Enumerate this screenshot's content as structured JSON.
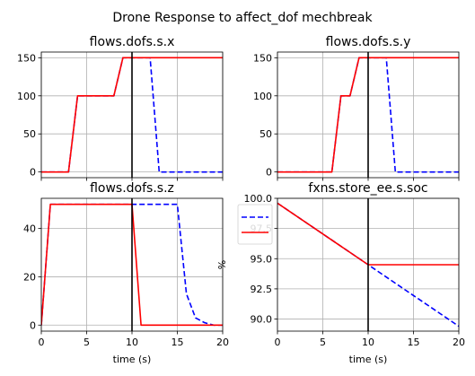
{
  "figure": {
    "suptitle": "Drone Response to affect_dof mechbreak"
  },
  "colors": {
    "nominal": "#0000ff",
    "faulty": "#ff0000",
    "event_line": "#000000",
    "grid": "#b0b0b0"
  },
  "chart_data": [
    {
      "type": "line",
      "title": "flows.dofs.s.x",
      "xlabel": "",
      "ylabel": "",
      "xlim": [
        0,
        20
      ],
      "ylim": [
        -7.5,
        157.5
      ],
      "xticks": [
        0,
        5,
        10,
        15,
        20
      ],
      "xtick_labels": [
        "",
        "",
        "",
        "",
        ""
      ],
      "yticks": [
        0,
        50,
        100,
        150
      ],
      "ytick_labels": [
        "0",
        "50",
        "100",
        "150"
      ],
      "grid": true,
      "event_time": 10,
      "series": [
        {
          "style": "dashed",
          "color": "#0000ff",
          "x": [
            0,
            1,
            2,
            3,
            4,
            5,
            6,
            7,
            8,
            9,
            10,
            11,
            12,
            13,
            14,
            15,
            16,
            17,
            18,
            19,
            20
          ],
          "y": [
            0,
            0,
            0,
            0,
            100,
            100,
            100,
            100,
            100,
            150,
            150,
            150,
            150,
            0,
            0,
            0,
            0,
            0,
            0,
            0,
            0
          ]
        },
        {
          "style": "solid",
          "color": "#ff0000",
          "x": [
            0,
            1,
            2,
            3,
            4,
            5,
            6,
            7,
            8,
            9,
            10,
            11,
            12,
            13,
            14,
            15,
            16,
            17,
            18,
            19,
            20
          ],
          "y": [
            0,
            0,
            0,
            0,
            100,
            100,
            100,
            100,
            100,
            150,
            150,
            150,
            150,
            150,
            150,
            150,
            150,
            150,
            150,
            150,
            150
          ]
        }
      ]
    },
    {
      "type": "line",
      "title": "flows.dofs.s.y",
      "xlabel": "",
      "ylabel": "",
      "xlim": [
        0,
        20
      ],
      "ylim": [
        -7.5,
        157.5
      ],
      "xticks": [
        0,
        5,
        10,
        15,
        20
      ],
      "xtick_labels": [
        "",
        "",
        "",
        "",
        ""
      ],
      "yticks": [
        0,
        50,
        100,
        150
      ],
      "ytick_labels": [
        "0",
        "50",
        "100",
        "150"
      ],
      "grid": true,
      "event_time": 10,
      "series": [
        {
          "style": "dashed",
          "color": "#0000ff",
          "x": [
            0,
            1,
            2,
            3,
            4,
            5,
            6,
            7,
            8,
            9,
            10,
            11,
            12,
            13,
            14,
            15,
            16,
            17,
            18,
            19,
            20
          ],
          "y": [
            0,
            0,
            0,
            0,
            0,
            0,
            0,
            100,
            100,
            150,
            150,
            150,
            150,
            0,
            0,
            0,
            0,
            0,
            0,
            0,
            0
          ]
        },
        {
          "style": "solid",
          "color": "#ff0000",
          "x": [
            0,
            1,
            2,
            3,
            4,
            5,
            6,
            7,
            8,
            9,
            10,
            11,
            12,
            13,
            14,
            15,
            16,
            17,
            18,
            19,
            20
          ],
          "y": [
            0,
            0,
            0,
            0,
            0,
            0,
            0,
            100,
            100,
            150,
            150,
            150,
            150,
            150,
            150,
            150,
            150,
            150,
            150,
            150,
            150
          ]
        }
      ]
    },
    {
      "type": "line",
      "title": "flows.dofs.s.z",
      "xlabel": "time (s)",
      "ylabel": "",
      "xlim": [
        0,
        20
      ],
      "ylim": [
        -2.5,
        52.5
      ],
      "xticks": [
        0,
        5,
        10,
        15,
        20
      ],
      "xtick_labels": [
        "0",
        "5",
        "10",
        "15",
        "20"
      ],
      "yticks": [
        0,
        20,
        40
      ],
      "ytick_labels": [
        "0",
        "20",
        "40"
      ],
      "grid": true,
      "event_time": 10,
      "series": [
        {
          "style": "dashed",
          "color": "#0000ff",
          "x": [
            0,
            1,
            2,
            3,
            4,
            5,
            6,
            7,
            8,
            9,
            10,
            11,
            12,
            13,
            14,
            15,
            16,
            17,
            18,
            19,
            20
          ],
          "y": [
            0,
            50,
            50,
            50,
            50,
            50,
            50,
            50,
            50,
            50,
            50,
            50,
            50,
            50,
            50,
            50,
            13,
            3,
            1,
            0,
            0
          ]
        },
        {
          "style": "solid",
          "color": "#ff0000",
          "x": [
            0,
            1,
            2,
            3,
            4,
            5,
            6,
            7,
            8,
            9,
            10,
            11,
            12,
            13,
            14,
            15,
            16,
            17,
            18,
            19,
            20
          ],
          "y": [
            0,
            50,
            50,
            50,
            50,
            50,
            50,
            50,
            50,
            50,
            50,
            0,
            0,
            0,
            0,
            0,
            0,
            0,
            0,
            0,
            0
          ]
        }
      ]
    },
    {
      "type": "line",
      "title": "fxns.store_ee.s.soc",
      "xlabel": "time (s)",
      "ylabel": "%",
      "xlim": [
        0,
        20
      ],
      "ylim": [
        89.0,
        100.0
      ],
      "xticks": [
        0,
        5,
        10,
        15,
        20
      ],
      "xtick_labels": [
        "0",
        "5",
        "10",
        "15",
        "20"
      ],
      "yticks": [
        90.0,
        92.5,
        95.0,
        97.5,
        100.0
      ],
      "ytick_labels": [
        "90.0",
        "92.5",
        "95.0",
        "97.5",
        "100.0"
      ],
      "grid": true,
      "event_time": 10,
      "legend": {
        "placement": "upper-left",
        "entries": [
          "",
          ""
        ]
      },
      "series": [
        {
          "style": "dashed",
          "color": "#0000ff",
          "x": [
            0,
            10,
            20
          ],
          "y": [
            99.6,
            94.5,
            89.4
          ]
        },
        {
          "style": "solid",
          "color": "#ff0000",
          "x": [
            0,
            10,
            20
          ],
          "y": [
            99.6,
            94.5,
            94.5
          ]
        }
      ]
    }
  ]
}
